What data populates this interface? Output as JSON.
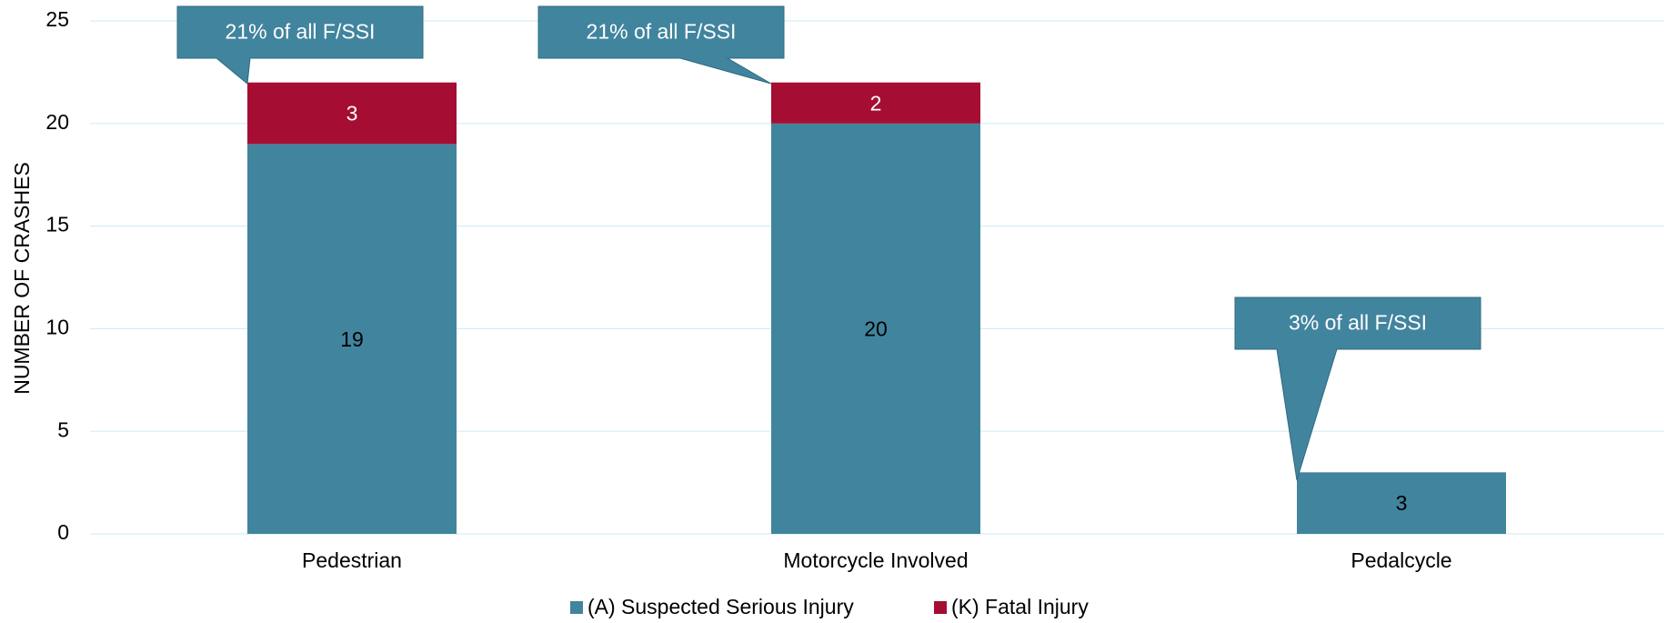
{
  "chart_data": {
    "type": "stacked_bar",
    "y_axis_label": "NUMBER OF CRASHES",
    "categories": [
      "Pedestrian",
      "Motorcycle Involved",
      "Pedalcycle"
    ],
    "series": [
      {
        "name": "(A) Suspected Serious Injury",
        "color": "#41849e",
        "values": [
          19,
          20,
          3
        ]
      },
      {
        "name": "(K) Fatal Injury",
        "color": "#a50e32",
        "values": [
          3,
          2,
          null
        ]
      }
    ],
    "annotations": [
      "21% of all F/SSI",
      "21% of all F/SSI",
      "3% of all F/SSI"
    ],
    "ylim": [
      0,
      25
    ],
    "yticks": [
      0,
      5,
      10,
      15,
      20,
      25
    ],
    "grid": true,
    "legend": "bottom"
  }
}
